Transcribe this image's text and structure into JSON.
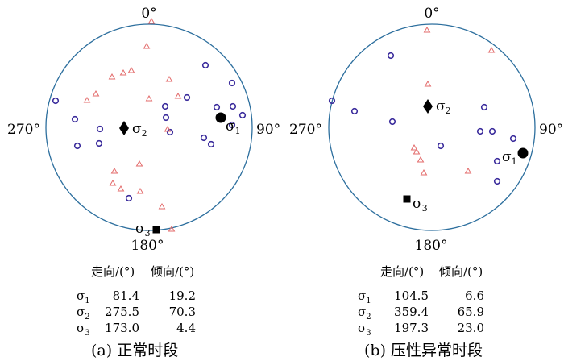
{
  "panels": [
    {
      "id": "a",
      "labels": {
        "north": "0°",
        "east": "90°",
        "south": "180°",
        "west": "270°"
      },
      "stress_labels": [
        "σ1",
        "σ2",
        "σ3"
      ],
      "table": {
        "headers": [
          "走向/(°)",
          "倾向/(°)"
        ],
        "rows": [
          {
            "sym": "σ",
            "sub": "1",
            "strike": "81.4",
            "dip": "19.2"
          },
          {
            "sym": "σ",
            "sub": "2",
            "strike": "275.5",
            "dip": "70.3"
          },
          {
            "sym": "σ",
            "sub": "3",
            "strike": "173.0",
            "dip": "4.4"
          }
        ]
      },
      "caption": "(a) 正常时段"
    },
    {
      "id": "b",
      "labels": {
        "north": "0°",
        "east": "90°",
        "south": "180°",
        "west": "270°"
      },
      "stress_labels": [
        "σ1",
        "σ2",
        "σ3"
      ],
      "table": {
        "headers": [
          "走向/(°)",
          "倾向/(°)"
        ],
        "rows": [
          {
            "sym": "σ",
            "sub": "1",
            "strike": "104.5",
            "dip": "6.6"
          },
          {
            "sym": "σ",
            "sub": "2",
            "strike": "359.4",
            "dip": "65.9"
          },
          {
            "sym": "σ",
            "sub": "3",
            "strike": "197.3",
            "dip": "23.0"
          }
        ]
      },
      "caption": "(b) 压性异常时段"
    }
  ],
  "colors": {
    "circle": "#2d6f9e",
    "circle_marker": "#3b2c9c",
    "triangle_marker": "#e36b6b",
    "symbol": "#000000"
  }
}
